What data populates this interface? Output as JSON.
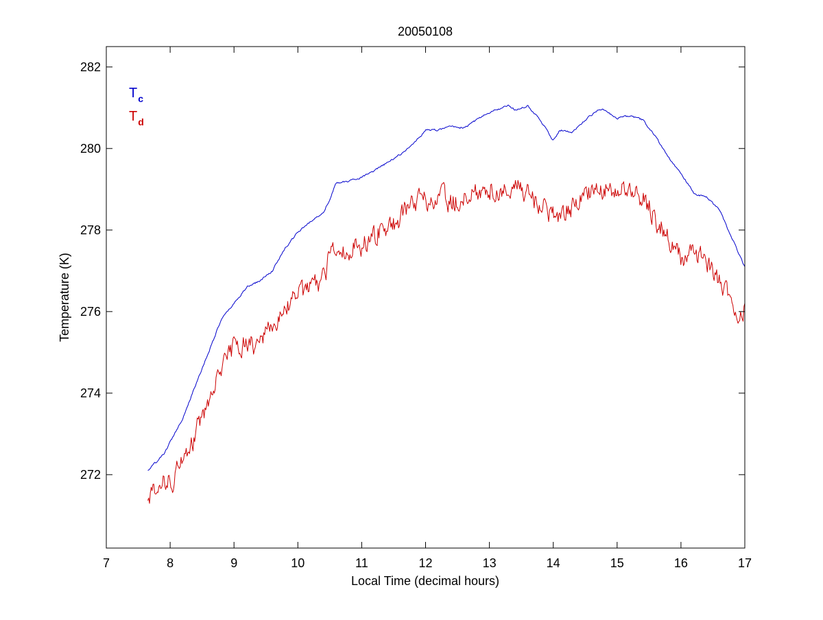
{
  "chart_data": {
    "type": "line",
    "title": "20050108",
    "xlabel": "Local Time (decimal hours)",
    "ylabel": "Temperature (K)",
    "xlim": [
      7,
      17
    ],
    "ylim": [
      270.2,
      282.5
    ],
    "xticks": [
      7,
      8,
      9,
      10,
      11,
      12,
      13,
      14,
      15,
      16,
      17
    ],
    "yticks": [
      272,
      274,
      276,
      278,
      280,
      282
    ],
    "grid": false,
    "legend_position": "top-left",
    "series": [
      {
        "name": "Tc",
        "name_main": "T",
        "name_sub": "c",
        "color": "#0000cc",
        "noise": 0.04,
        "x": [
          7.65,
          7.9,
          8.2,
          8.5,
          8.8,
          9.1,
          9.2,
          9.4,
          9.6,
          9.8,
          10.0,
          10.2,
          10.4,
          10.5,
          10.6,
          10.8,
          11.0,
          11.2,
          11.4,
          11.6,
          11.8,
          12.0,
          12.2,
          12.4,
          12.6,
          12.7,
          12.9,
          13.1,
          13.3,
          13.4,
          13.6,
          13.8,
          14.0,
          14.1,
          14.3,
          14.5,
          14.7,
          14.8,
          15.0,
          15.2,
          15.4,
          15.6,
          15.8,
          16.0,
          16.2,
          16.4,
          16.6,
          16.8,
          17.0
        ],
        "y": [
          272.1,
          272.5,
          273.4,
          274.6,
          275.8,
          276.4,
          276.6,
          276.75,
          277.0,
          277.55,
          277.95,
          278.2,
          278.45,
          278.75,
          279.15,
          279.2,
          279.3,
          279.45,
          279.65,
          279.85,
          280.1,
          280.45,
          280.45,
          280.55,
          280.5,
          280.6,
          280.8,
          280.95,
          281.05,
          280.95,
          281.05,
          280.7,
          280.2,
          280.45,
          280.4,
          280.7,
          280.95,
          280.95,
          280.75,
          280.8,
          280.7,
          280.3,
          279.8,
          279.4,
          278.9,
          278.8,
          278.5,
          277.8,
          277.1
        ]
      },
      {
        "name": "Td",
        "name_main": "T",
        "name_sub": "d",
        "color": "#cc0000",
        "noise": 0.45,
        "x": [
          7.65,
          7.9,
          8.05,
          8.2,
          8.4,
          8.6,
          8.8,
          9.0,
          9.2,
          9.4,
          9.6,
          9.8,
          10.0,
          10.2,
          10.4,
          10.5,
          10.55,
          10.7,
          10.9,
          11.1,
          11.3,
          11.5,
          11.7,
          11.9,
          12.1,
          12.3,
          12.5,
          12.7,
          12.9,
          13.1,
          13.3,
          13.5,
          13.7,
          13.9,
          14.1,
          14.3,
          14.5,
          14.7,
          14.9,
          15.1,
          15.3,
          15.5,
          15.7,
          15.9,
          16.0,
          16.2,
          16.4,
          16.6,
          16.8,
          16.9,
          17.0
        ],
        "y": [
          271.55,
          271.8,
          271.9,
          272.4,
          273.0,
          273.8,
          274.5,
          275.1,
          275.2,
          275.15,
          275.6,
          276.1,
          276.35,
          276.55,
          276.75,
          277.4,
          277.6,
          277.45,
          277.55,
          277.75,
          278.05,
          278.15,
          278.5,
          278.7,
          278.75,
          278.75,
          278.7,
          278.85,
          279.05,
          279.0,
          279.0,
          279.05,
          278.75,
          278.5,
          278.4,
          278.55,
          278.9,
          279.0,
          279.0,
          278.95,
          279.0,
          278.55,
          278.05,
          277.55,
          277.3,
          277.35,
          277.25,
          276.75,
          276.3,
          276.0,
          276.15
        ]
      }
    ]
  }
}
